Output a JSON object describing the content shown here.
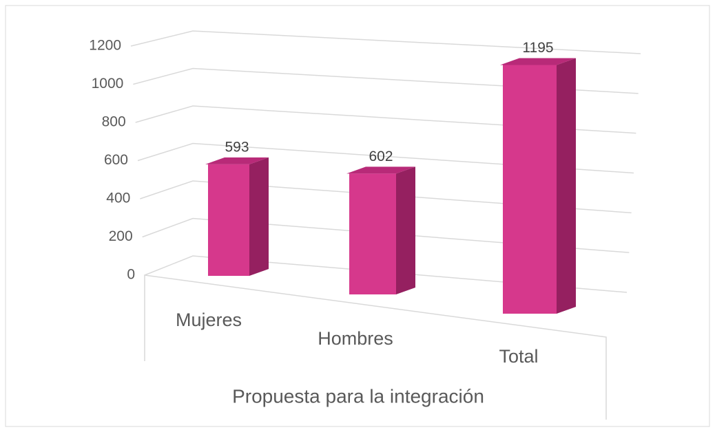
{
  "chart_data": {
    "type": "bar3d",
    "x_label": "Propuesta para la integración",
    "categories": [
      "Mujeres",
      "Hombres",
      "Total"
    ],
    "values": [
      593,
      602,
      1195
    ],
    "color": "#d6388c",
    "ylim": [
      0,
      1200
    ],
    "yticks": [
      0,
      200,
      400,
      600,
      800,
      1000,
      1200
    ],
    "grid": true
  }
}
